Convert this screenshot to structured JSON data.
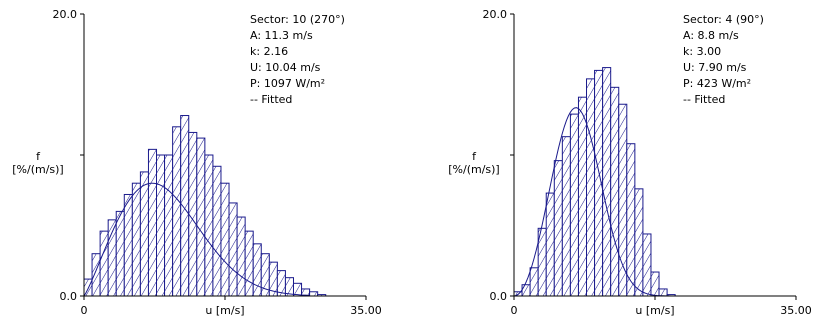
{
  "chart_data": [
    {
      "type": "bar",
      "ylabel_line1": "f",
      "ylabel_line2": "[%/(m/s)]",
      "xlabel": "u [m/s]",
      "y_tick_labels": [
        "0.0",
        "20.0"
      ],
      "x_tick_labels": [
        "0",
        "35.00"
      ],
      "xlim": [
        0,
        35
      ],
      "ylim": [
        0,
        20
      ],
      "bin_width": 1,
      "values": [
        1.2,
        3.0,
        4.6,
        5.4,
        6.0,
        7.2,
        8.0,
        8.8,
        10.4,
        10.0,
        10.0,
        12.0,
        12.8,
        11.6,
        11.2,
        10.0,
        9.2,
        8.0,
        6.6,
        5.6,
        4.6,
        3.7,
        3.0,
        2.4,
        1.8,
        1.3,
        0.9,
        0.5,
        0.3,
        0.1
      ],
      "info": [
        "Sector: 10 (270°)",
        "A: 11.3 m/s",
        "k: 2.16",
        "U: 10.04 m/s",
        "P: 1097 W/m²",
        "-- Fitted"
      ],
      "fit": {
        "A": 11.3,
        "k": 2.16
      }
    },
    {
      "type": "bar",
      "ylabel_line1": "f",
      "ylabel_line2": "[%/(m/s)]",
      "xlabel": "u [m/s]",
      "y_tick_labels": [
        "0.0",
        "20.0"
      ],
      "x_tick_labels": [
        "0",
        "35.00"
      ],
      "xlim": [
        0,
        35
      ],
      "ylim": [
        0,
        20
      ],
      "bin_width": 1,
      "values": [
        0.3,
        0.8,
        2.0,
        4.8,
        7.3,
        9.6,
        11.3,
        12.9,
        14.1,
        15.4,
        16.0,
        16.2,
        14.8,
        13.6,
        10.8,
        7.6,
        4.4,
        1.7,
        0.5,
        0.1
      ],
      "info": [
        "Sector: 4 (90°)",
        "A: 8.8 m/s",
        "k: 3.00",
        "U: 7.90 m/s",
        "P: 423 W/m²",
        "-- Fitted"
      ],
      "fit": {
        "A": 8.8,
        "k": 3.0
      }
    }
  ],
  "colors": {
    "bar": "#1a1a8c",
    "fill_bg": "#ffffff",
    "axis": "#000000",
    "fit": "#1a1a8c"
  }
}
